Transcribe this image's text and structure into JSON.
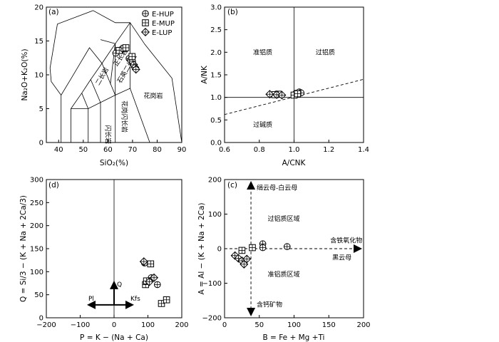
{
  "legend": [
    {
      "symbol": "circle-plus",
      "label": "E-HUP"
    },
    {
      "symbol": "square-plus",
      "label": "E-MUP"
    },
    {
      "symbol": "diamond-plus",
      "label": "E-LUP"
    }
  ],
  "chart_data": [
    {
      "panel": "(a)",
      "type": "scatter",
      "xlabel": "SiO2(%)",
      "ylabel": "Na2O+K2O(%)",
      "xlim": [
        35,
        90
      ],
      "ylim": [
        0,
        20
      ],
      "xticks": [
        40,
        50,
        60,
        70,
        80,
        90
      ],
      "yticks": [
        0,
        5,
        10,
        15,
        20
      ],
      "field_labels": [
        "正长岩",
        "二长岩",
        "石英二长岩",
        "闪长岩",
        "花岗闪长岩",
        "花岗岩"
      ],
      "series": [
        {
          "name": "E-HUP",
          "marker": "circle-plus",
          "x": [
            63.2,
            65.3,
            68.6,
            69.2,
            70.0
          ],
          "y": [
            13.2,
            13.7,
            12.4,
            12.2,
            12.0
          ]
        },
        {
          "name": "E-MUP",
          "marker": "square-plus",
          "x": [
            64.6,
            66.6,
            67.3,
            69.8
          ],
          "y": [
            13.6,
            13.9,
            14.0,
            12.7
          ]
        },
        {
          "name": "E-LUP",
          "marker": "diamond-plus",
          "x": [
            70.5,
            71.0,
            71.4
          ],
          "y": [
            11.5,
            11.1,
            10.8
          ]
        }
      ]
    },
    {
      "panel": "(b)",
      "type": "scatter",
      "xlabel": "A/CNK",
      "ylabel": "A/NK",
      "xlim": [
        0.6,
        1.4
      ],
      "ylim": [
        0.0,
        3.0
      ],
      "xticks": [
        "0.6",
        "0.8",
        "1.0",
        "1.2",
        "1.4"
      ],
      "yticks": [
        "0.0",
        "0.5",
        "1.0",
        "1.5",
        "2.0",
        "2.5",
        "3.0"
      ],
      "field_labels": [
        "准铝质",
        "过铝质",
        "过碱质"
      ],
      "series": [
        {
          "name": "E-HUP",
          "marker": "circle-plus",
          "x": [
            1.01,
            1.03,
            1.04
          ],
          "y": [
            1.09,
            1.12,
            1.1
          ]
        },
        {
          "name": "E-MUP",
          "marker": "square-plus",
          "x": [
            0.89,
            0.91,
            1.0,
            1.02
          ],
          "y": [
            1.06,
            1.07,
            1.05,
            1.08
          ]
        },
        {
          "name": "E-LUP",
          "marker": "diamond-plus",
          "x": [
            0.86,
            0.9,
            0.93
          ],
          "y": [
            1.07,
            1.06,
            1.05
          ]
        }
      ]
    },
    {
      "panel": "(d)",
      "type": "scatter",
      "xlabel": "P = K − (Na + Ca)",
      "ylabel": "Q = Si/3 − (K + Na + 2Ca/3)",
      "xlim": [
        -200,
        200
      ],
      "ylim": [
        0,
        300
      ],
      "xticks": [
        "−200",
        "−100",
        "0",
        "100",
        "200"
      ],
      "yticks": [
        "0",
        "50",
        "100",
        "150",
        "200",
        "250",
        "300"
      ],
      "vectors": [
        "Q",
        "Pl",
        "Kfs"
      ],
      "series": [
        {
          "name": "E-HUP",
          "marker": "circle-plus",
          "x": [
            90,
            110,
            128
          ],
          "y": [
            119,
            87,
            72
          ]
        },
        {
          "name": "E-MUP",
          "marker": "square-plus",
          "x": [
            93,
            96,
            108,
            140,
            155
          ],
          "y": [
            72,
            80,
            117,
            31,
            39
          ]
        },
        {
          "name": "E-LUP",
          "marker": "diamond-plus",
          "x": [
            88,
            104,
            118
          ],
          "y": [
            122,
            78,
            87
          ]
        }
      ]
    },
    {
      "panel": "(c)",
      "type": "scatter",
      "xlabel": "B = Fe + Mg +Ti",
      "ylabel": "A = Al − (K + Na + 2Ca)",
      "xlim": [
        0,
        200
      ],
      "ylim": [
        -200,
        200
      ],
      "xticks": [
        "0",
        "50",
        "100",
        "150",
        "200"
      ],
      "yticks": [
        "−200",
        "−100",
        "0",
        "100",
        "200"
      ],
      "annotations": [
        "绢云母-白云母",
        "过铝质区域",
        "含铁氧化物",
        "黑云母",
        "准铝质区域",
        "含钙矿物"
      ],
      "series": [
        {
          "name": "E-HUP",
          "marker": "circle-plus",
          "x": [
            55,
            55,
            90
          ],
          "y": [
            14,
            3,
            6
          ]
        },
        {
          "name": "E-MUP",
          "marker": "square-plus",
          "x": [
            25,
            40
          ],
          "y": [
            -5,
            3
          ]
        },
        {
          "name": "E-LUP",
          "marker": "diamond-plus",
          "x": [
            15,
            20,
            25,
            28,
            32
          ],
          "y": [
            -20,
            -28,
            -35,
            -45,
            -30
          ]
        }
      ]
    }
  ]
}
